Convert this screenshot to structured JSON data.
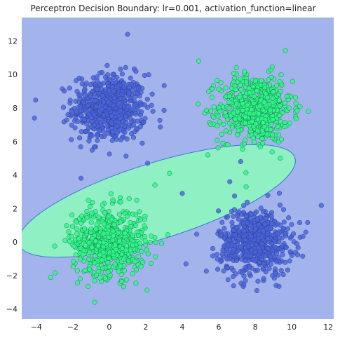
{
  "chart_data": {
    "type": "scatter",
    "title": "Perceptron Decision Boundary: lr=0.001, activation_function=linear",
    "xlabel": "",
    "ylabel": "",
    "xlim": [
      -4.8,
      12.3
    ],
    "ylim": [
      -4.6,
      13.4
    ],
    "xticks": [
      -4,
      -2,
      0,
      2,
      4,
      6,
      8,
      10,
      12
    ],
    "yticks": [
      -4,
      -2,
      0,
      2,
      4,
      6,
      8,
      10,
      12
    ],
    "grid": false,
    "legend": "none",
    "background_region_color": "#a3b4ec",
    "decision_region": {
      "shape": "ellipse",
      "fill_color": "#8ff0c4",
      "edge_color": "#3a6fd8",
      "center": [
        2.6,
        2.45
      ],
      "semi_major": 8.0,
      "semi_minor": 2.25,
      "angle_deg": 19
    },
    "clusters": [
      {
        "class": "blue",
        "color": "#4a64dc",
        "edge": "#2d3f8f",
        "center": [
          0,
          8
        ],
        "spread": 1.0,
        "count": 600
      },
      {
        "class": "green",
        "color": "#2dfa8a",
        "edge": "#1f7a4c",
        "center": [
          8,
          8
        ],
        "spread": 1.0,
        "count": 600
      },
      {
        "class": "green",
        "color": "#2dfa8a",
        "edge": "#1f7a4c",
        "center": [
          0,
          0
        ],
        "spread": 1.0,
        "count": 600
      },
      {
        "class": "blue",
        "color": "#4a64dc",
        "edge": "#2d3f8f",
        "center": [
          8,
          0
        ],
        "spread": 1.0,
        "count": 600
      }
    ],
    "outliers": [
      {
        "class": "blue",
        "x": 1.0,
        "y": 12.4
      },
      {
        "class": "green",
        "x": 4.9,
        "y": 10.8
      },
      {
        "class": "blue",
        "x": 2.1,
        "y": 4.7
      },
      {
        "class": "blue",
        "x": 4.0,
        "y": 2.9
      },
      {
        "class": "green",
        "x": 3.3,
        "y": 4.1
      },
      {
        "class": "blue",
        "x": 6.6,
        "y": 3.6
      },
      {
        "class": "green",
        "x": 7.5,
        "y": 3.3
      },
      {
        "class": "green",
        "x": 5.4,
        "y": 5.2
      },
      {
        "class": "blue",
        "x": 4.2,
        "y": -1.3
      },
      {
        "class": "green",
        "x": -0.8,
        "y": -3.6
      },
      {
        "class": "blue",
        "x": -4.1,
        "y": 7.4
      },
      {
        "class": "green",
        "x": 6.5,
        "y": 5.8
      },
      {
        "class": "blue",
        "x": 7.2,
        "y": 4.8
      },
      {
        "class": "green",
        "x": 2.5,
        "y": 3.4
      }
    ]
  }
}
